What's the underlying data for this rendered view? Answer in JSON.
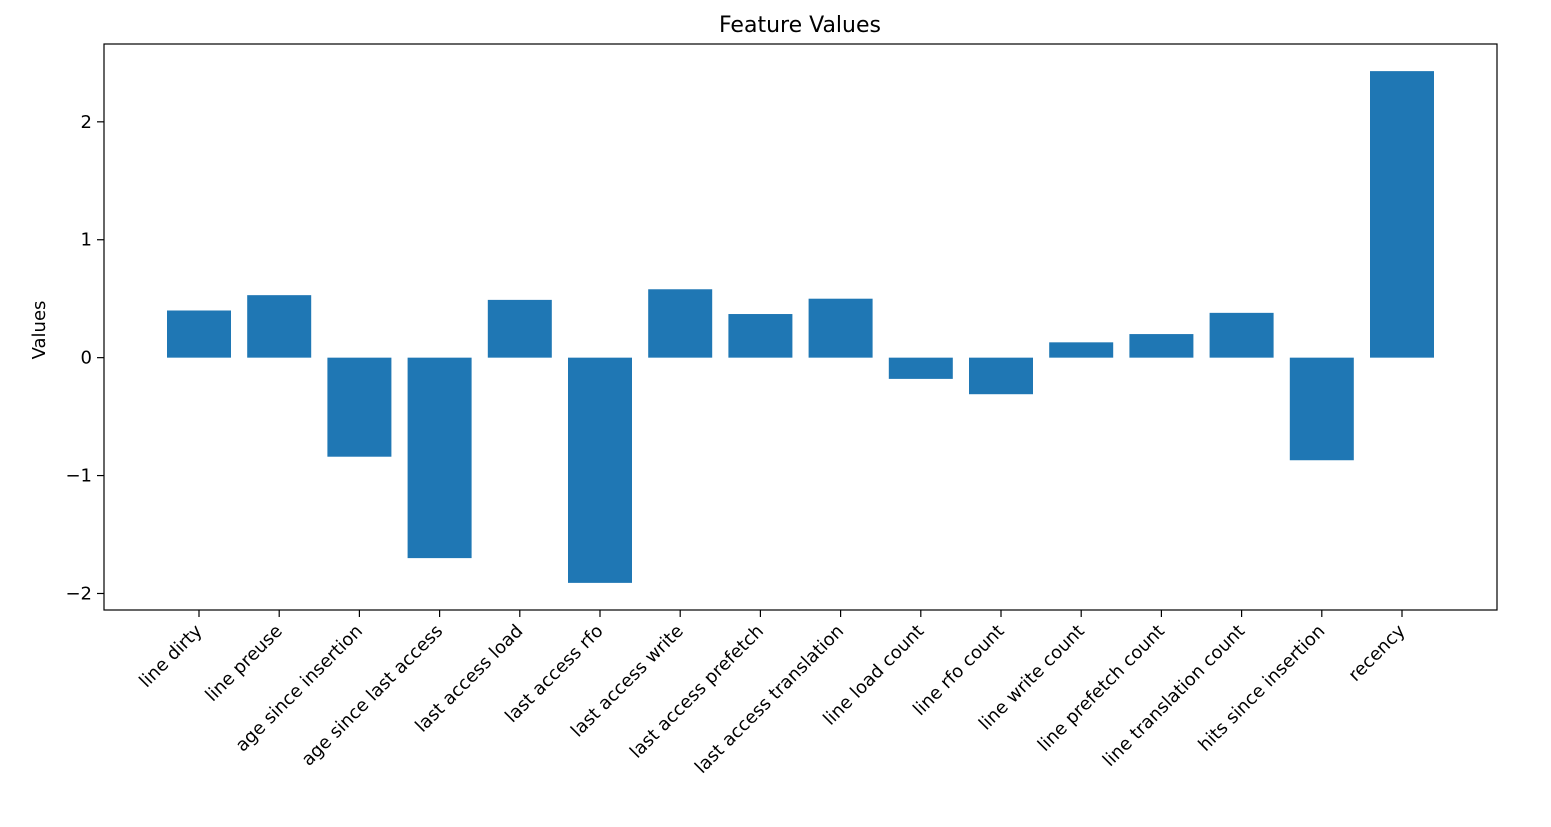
{
  "chart_data": {
    "type": "bar",
    "title": "Feature Values",
    "xlabel": "",
    "ylabel": "Values",
    "ylim": [
      -2.14,
      2.66
    ],
    "yticks": [
      2,
      1,
      0,
      -1,
      -2
    ],
    "ytick_labels": [
      "2",
      "1",
      "0",
      "−1",
      "−2"
    ],
    "grid": false,
    "bar_color": "#1f77b4",
    "categories": [
      "line dirty",
      "line preuse",
      "age since insertion",
      "age since last access",
      "last access load",
      "last access rfo",
      "last access write",
      "last access prefetch",
      "last access translation",
      "line load count",
      "line rfo count",
      "line write count",
      "line prefetch count",
      "line translation count",
      "hits since insertion",
      "recency"
    ],
    "values": [
      0.4,
      0.53,
      -0.84,
      -1.7,
      0.49,
      -1.91,
      0.58,
      0.37,
      0.5,
      -0.18,
      -0.31,
      0.13,
      0.2,
      0.38,
      -0.87,
      2.43
    ]
  }
}
